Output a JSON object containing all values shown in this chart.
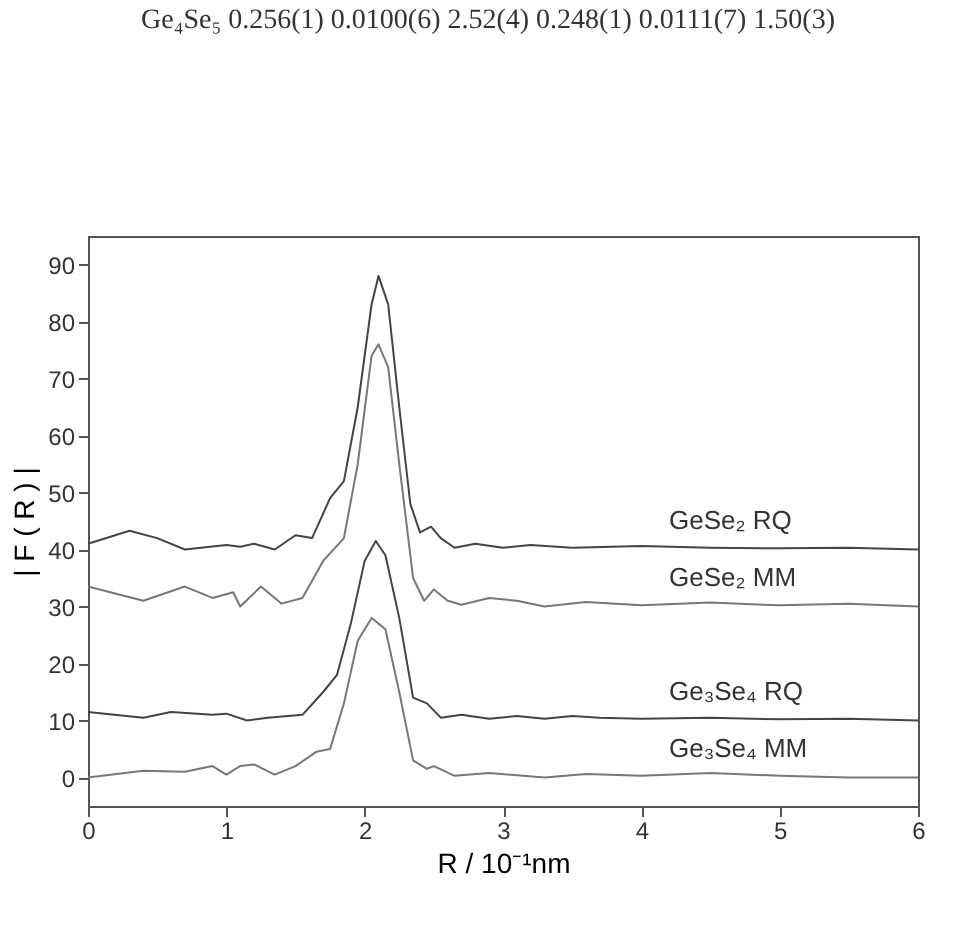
{
  "chart_data": {
    "type": "line",
    "xlabel": "R / 10⁻¹nm",
    "ylabel": "| F ( R ) |",
    "annotations": [
      "Ge₄Se₅   0.256(1)   0.0100(6)   2.52(4)   0.248(1)   0.0111(7)   1.50(3)"
    ],
    "xlim": [
      0,
      6
    ],
    "ylim": [
      -5,
      95
    ],
    "xticks": [
      0,
      1,
      2,
      3,
      4,
      5,
      6
    ],
    "yticks": [
      0,
      10,
      20,
      30,
      40,
      50,
      60,
      70,
      80,
      90
    ],
    "grid": false,
    "legend": false,
    "marker": "none",
    "line_style": "solid",
    "series": [
      {
        "name": "GeSe₂ RQ",
        "color": "#444444",
        "x": [
          0,
          0.3,
          0.5,
          0.7,
          1.0,
          1.1,
          1.2,
          1.35,
          1.5,
          1.62,
          1.75,
          1.85,
          1.95,
          2.05,
          2.1,
          2.17,
          2.25,
          2.33,
          2.4,
          2.48,
          2.55,
          2.65,
          2.8,
          3.0,
          3.2,
          3.5,
          4.0,
          4.5,
          5.0,
          5.5,
          6
        ],
        "values": [
          41,
          43.3,
          42,
          40,
          40.8,
          40.5,
          41,
          40,
          42.5,
          42,
          49,
          52,
          65,
          83,
          88,
          83,
          65,
          48,
          43,
          44,
          42,
          40.3,
          41,
          40.3,
          40.8,
          40.3,
          40.6,
          40.3,
          40.2,
          40.3,
          40
        ]
      },
      {
        "name": "GeSe₂ MM",
        "color": "#777777",
        "x": [
          0,
          0.4,
          0.7,
          0.9,
          1.05,
          1.1,
          1.25,
          1.4,
          1.55,
          1.7,
          1.85,
          1.95,
          2.05,
          2.1,
          2.17,
          2.25,
          2.35,
          2.43,
          2.5,
          2.6,
          2.7,
          2.9,
          3.1,
          3.3,
          3.6,
          4,
          4.5,
          5,
          5.5,
          6
        ],
        "values": [
          33.5,
          31,
          33.5,
          31.5,
          32.5,
          30,
          33.5,
          30.5,
          31.5,
          38,
          42,
          55,
          74,
          76,
          72,
          55,
          35,
          31,
          33,
          31,
          30.3,
          31.5,
          31,
          30,
          30.8,
          30.2,
          30.7,
          30.2,
          30.5,
          30
        ]
      },
      {
        "name": "Ge₃Se₄ RQ",
        "color": "#444444",
        "x": [
          0,
          0.4,
          0.6,
          0.9,
          1.0,
          1.15,
          1.3,
          1.55,
          1.7,
          1.8,
          1.9,
          2.0,
          2.08,
          2.15,
          2.25,
          2.35,
          2.45,
          2.55,
          2.7,
          2.9,
          3.1,
          3.3,
          3.5,
          3.7,
          4,
          4.5,
          5,
          5.5,
          6
        ],
        "values": [
          11.5,
          10.5,
          11.5,
          11,
          11.2,
          10,
          10.5,
          11,
          15,
          18,
          27,
          38,
          41.5,
          39,
          28,
          14,
          13,
          10.5,
          11,
          10.3,
          10.8,
          10.3,
          10.8,
          10.5,
          10.3,
          10.5,
          10.2,
          10.3,
          10
        ]
      },
      {
        "name": "Ge₃Se₄ MM",
        "color": "#777777",
        "x": [
          0,
          0.4,
          0.7,
          0.9,
          1.0,
          1.1,
          1.2,
          1.35,
          1.5,
          1.65,
          1.75,
          1.85,
          1.95,
          2.05,
          2.15,
          2.25,
          2.35,
          2.45,
          2.5,
          2.65,
          2.9,
          3.3,
          3.6,
          4,
          4.5,
          5,
          5.5,
          6
        ],
        "values": [
          0,
          1.2,
          1,
          2,
          0.5,
          2,
          2.3,
          0.5,
          2,
          4.5,
          5,
          13,
          24,
          28,
          26,
          15,
          3,
          1.5,
          2,
          0.3,
          0.8,
          0,
          0.6,
          0.3,
          0.8,
          0.3,
          0,
          0
        ]
      }
    ]
  }
}
